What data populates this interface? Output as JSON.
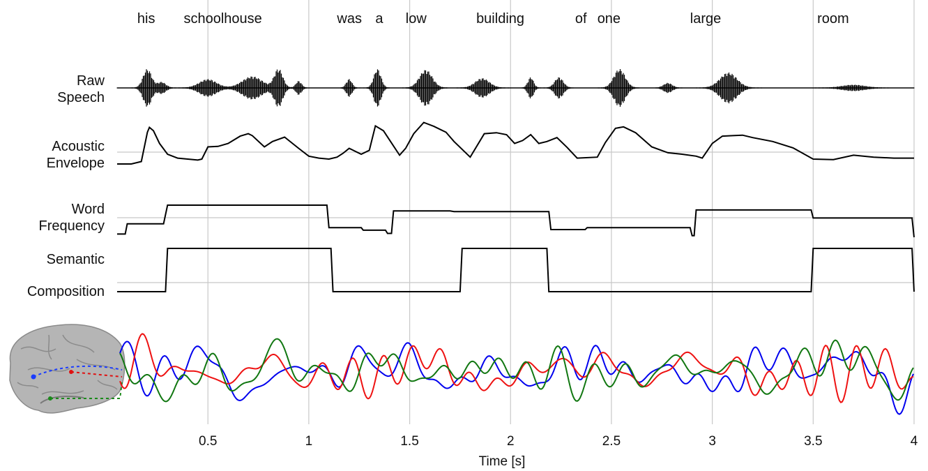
{
  "chart_data": {
    "type": "line",
    "x_axis": {
      "label": "Time [s]",
      "range": [
        0.05,
        4.0
      ],
      "ticks": [
        0.5,
        1,
        1.5,
        2,
        2.5,
        3,
        3.5,
        4
      ],
      "tick_labels": [
        "0.5",
        "1",
        "1.5",
        "2",
        "2.5",
        "3",
        "3.5",
        "4"
      ],
      "grid": true
    },
    "words": [
      {
        "text": "his",
        "t": 0.15
      },
      {
        "text": "schoolhouse",
        "t": 0.38
      },
      {
        "text": "was",
        "t": 1.14
      },
      {
        "text": "a",
        "t": 1.33
      },
      {
        "text": "low",
        "t": 1.48
      },
      {
        "text": "building",
        "t": 1.83
      },
      {
        "text": "of",
        "t": 2.32
      },
      {
        "text": "one",
        "t": 2.43
      },
      {
        "text": "large",
        "t": 2.89
      },
      {
        "text": "room",
        "t": 3.52
      }
    ],
    "rows": [
      {
        "label_lines": [
          "Raw",
          "Speech"
        ],
        "kind": "waveform",
        "bursts": [
          {
            "t": 0.2,
            "w": 0.03,
            "a": 1.0
          },
          {
            "t": 0.27,
            "w": 0.03,
            "a": 0.3
          },
          {
            "t": 0.5,
            "w": 0.06,
            "a": 0.45
          },
          {
            "t": 0.72,
            "w": 0.07,
            "a": 0.6
          },
          {
            "t": 0.85,
            "w": 0.03,
            "a": 1.0
          },
          {
            "t": 0.95,
            "w": 0.02,
            "a": 0.35
          },
          {
            "t": 1.2,
            "w": 0.02,
            "a": 0.45
          },
          {
            "t": 1.34,
            "w": 0.025,
            "a": 1.0
          },
          {
            "t": 1.58,
            "w": 0.045,
            "a": 0.95
          },
          {
            "t": 1.86,
            "w": 0.05,
            "a": 0.5
          },
          {
            "t": 2.1,
            "w": 0.02,
            "a": 0.55
          },
          {
            "t": 2.24,
            "w": 0.03,
            "a": 0.55
          },
          {
            "t": 2.54,
            "w": 0.04,
            "a": 1.0
          },
          {
            "t": 2.78,
            "w": 0.03,
            "a": 0.25
          },
          {
            "t": 3.08,
            "w": 0.06,
            "a": 0.8
          },
          {
            "t": 3.7,
            "w": 0.08,
            "a": 0.15
          }
        ]
      },
      {
        "label_lines": [
          "Acoustic",
          "Envelope"
        ],
        "kind": "line",
        "t": [
          0.05,
          0.12,
          0.17,
          0.2,
          0.21,
          0.23,
          0.26,
          0.3,
          0.35,
          0.4,
          0.45,
          0.47,
          0.5,
          0.55,
          0.6,
          0.66,
          0.7,
          0.72,
          0.78,
          0.82,
          0.88,
          0.95,
          1.0,
          1.05,
          1.1,
          1.14,
          1.17,
          1.2,
          1.22,
          1.26,
          1.3,
          1.33,
          1.37,
          1.45,
          1.48,
          1.52,
          1.57,
          1.62,
          1.68,
          1.72,
          1.8,
          1.87,
          1.93,
          1.98,
          2.02,
          2.06,
          2.1,
          2.14,
          2.18,
          2.23,
          2.28,
          2.33,
          2.43,
          2.47,
          2.52,
          2.56,
          2.62,
          2.7,
          2.78,
          2.85,
          2.92,
          2.95,
          3.0,
          3.05,
          3.1,
          3.15,
          3.2,
          3.3,
          3.4,
          3.5,
          3.6,
          3.7,
          3.8,
          3.9,
          4.0
        ],
        "y": [
          0.1,
          0.1,
          0.15,
          0.75,
          0.85,
          0.78,
          0.52,
          0.3,
          0.22,
          0.2,
          0.18,
          0.2,
          0.45,
          0.46,
          0.52,
          0.67,
          0.72,
          0.68,
          0.45,
          0.56,
          0.65,
          0.42,
          0.26,
          0.22,
          0.2,
          0.24,
          0.32,
          0.42,
          0.38,
          0.3,
          0.38,
          0.88,
          0.78,
          0.28,
          0.42,
          0.72,
          0.95,
          0.87,
          0.75,
          0.56,
          0.24,
          0.72,
          0.74,
          0.7,
          0.52,
          0.58,
          0.7,
          0.52,
          0.56,
          0.64,
          0.44,
          0.22,
          0.24,
          0.54,
          0.83,
          0.86,
          0.74,
          0.45,
          0.33,
          0.3,
          0.26,
          0.22,
          0.52,
          0.67,
          0.68,
          0.69,
          0.64,
          0.56,
          0.43,
          0.2,
          0.19,
          0.28,
          0.24,
          0.22,
          0.22
        ]
      },
      {
        "label_lines": [
          "Word",
          "Frequency"
        ],
        "kind": "step",
        "t": [
          0.05,
          0.09,
          0.1,
          0.28,
          0.3,
          1.09,
          1.1,
          1.26,
          1.27,
          1.38,
          1.39,
          1.41,
          1.42,
          1.7,
          1.72,
          2.19,
          2.2,
          2.37,
          2.38,
          2.89,
          2.9,
          2.91,
          2.92,
          3.49,
          3.5,
          3.99,
          4.0
        ],
        "y": [
          0.1,
          0.1,
          0.42,
          0.42,
          1.0,
          1.0,
          0.3,
          0.3,
          0.22,
          0.22,
          0.12,
          0.12,
          0.82,
          0.82,
          0.8,
          0.8,
          0.24,
          0.24,
          0.3,
          0.3,
          0.05,
          0.05,
          0.85,
          0.85,
          0.6,
          0.6,
          0.0
        ]
      },
      {
        "label_lines": [
          "Semantic",
          "Composition"
        ],
        "kind": "step",
        "t": [
          0.05,
          0.29,
          0.3,
          1.11,
          1.12,
          1.75,
          1.76,
          2.18,
          2.19,
          3.49,
          3.5,
          3.99,
          4.0
        ],
        "y": [
          0.0,
          0.0,
          1.0,
          1.0,
          0.0,
          0.0,
          1.0,
          1.0,
          0.0,
          0.0,
          1.0,
          1.0,
          0.0
        ]
      }
    ],
    "series": [
      {
        "color": "#0000ee",
        "seed": 11
      },
      {
        "color": "#ee1111",
        "seed": 29
      },
      {
        "color": "#117711",
        "seed": 53
      }
    ]
  }
}
